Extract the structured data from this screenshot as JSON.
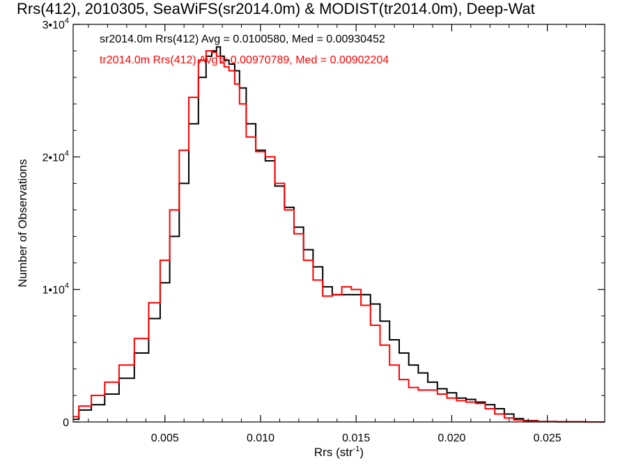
{
  "chart_data": {
    "type": "line",
    "title": "Rrs(412), 2010305, SeaWiFS(sr2014.0m) & MODIST(tr2014.0m), Deep-Wat",
    "xlabel": "Rrs (str",
    "xlabel_sup": "-1",
    "xlabel_end": ")",
    "ylabel": "Number of Observations",
    "xlim": [
      0.0002,
      0.028
    ],
    "ylim": [
      0,
      30000
    ],
    "x_ticks": [
      {
        "value": 0.005,
        "label": "0.005"
      },
      {
        "value": 0.01,
        "label": "0.010"
      },
      {
        "value": 0.015,
        "label": "0.015"
      },
      {
        "value": 0.02,
        "label": "0.020"
      },
      {
        "value": 0.025,
        "label": "0.025"
      }
    ],
    "y_ticks": [
      {
        "value": 0,
        "mantissa": "0",
        "exp": ""
      },
      {
        "value": 10000,
        "mantissa": "1•10",
        "exp": "4"
      },
      {
        "value": 20000,
        "mantissa": "2•10",
        "exp": "4"
      },
      {
        "value": 30000,
        "mantissa": "3•10",
        "exp": "4"
      }
    ],
    "grid": false,
    "annotations": [
      {
        "text": "sr2014.0m Rrs(412) Avg = 0.0100580, Med = 0.00930452",
        "color": "#000000"
      },
      {
        "text": "tr2014.0m Rrs(412) Avg = 0.00970789, Med = 0.00902204",
        "color": "#ff0000"
      }
    ],
    "series": [
      {
        "color": "#000000",
        "x": [
          0.0002,
          0.0008,
          0.0015,
          0.0022,
          0.003,
          0.0038,
          0.0045,
          0.005,
          0.0055,
          0.006,
          0.0065,
          0.007,
          0.0073,
          0.0076,
          0.0078,
          0.008,
          0.0082,
          0.0085,
          0.0088,
          0.009,
          0.0095,
          0.01,
          0.0105,
          0.011,
          0.0115,
          0.012,
          0.0125,
          0.013,
          0.0135,
          0.014,
          0.0145,
          0.015,
          0.0155,
          0.016,
          0.0165,
          0.017,
          0.0175,
          0.018,
          0.0185,
          0.019,
          0.0195,
          0.02,
          0.0205,
          0.021,
          0.0215,
          0.022,
          0.0225,
          0.023,
          0.0235,
          0.024,
          0.025,
          0.026,
          0.028
        ],
        "y": [
          200,
          900,
          1300,
          2100,
          3300,
          5200,
          7800,
          10500,
          14000,
          18000,
          22500,
          26000,
          27600,
          28000,
          28300,
          27600,
          27300,
          27000,
          26500,
          25200,
          22500,
          20500,
          19700,
          17800,
          16200,
          14700,
          13000,
          11700,
          10200,
          9600,
          9600,
          9600,
          9600,
          8900,
          7600,
          6200,
          5200,
          4300,
          3700,
          3000,
          2500,
          2200,
          1800,
          1700,
          1500,
          1300,
          1000,
          600,
          250,
          100,
          30,
          10,
          0
        ]
      },
      {
        "color": "#ff0000",
        "x": [
          0.0002,
          0.0008,
          0.0015,
          0.0022,
          0.003,
          0.0038,
          0.0045,
          0.005,
          0.0055,
          0.006,
          0.0065,
          0.007,
          0.0073,
          0.0076,
          0.0078,
          0.008,
          0.0082,
          0.0085,
          0.0088,
          0.009,
          0.0095,
          0.01,
          0.0105,
          0.011,
          0.0115,
          0.012,
          0.0125,
          0.013,
          0.0135,
          0.014,
          0.0145,
          0.015,
          0.0155,
          0.016,
          0.0165,
          0.017,
          0.0175,
          0.018,
          0.0185,
          0.019,
          0.0195,
          0.02,
          0.0205,
          0.021,
          0.0215,
          0.022,
          0.0225,
          0.023,
          0.0235,
          0.024,
          0.025,
          0.026,
          0.028
        ],
        "y": [
          400,
          1200,
          2000,
          3000,
          4300,
          6300,
          9000,
          12200,
          16000,
          20500,
          24500,
          27300,
          28000,
          27900,
          27600,
          27100,
          26800,
          26500,
          25500,
          24000,
          21500,
          20400,
          20000,
          18000,
          16000,
          14200,
          12200,
          10700,
          9500,
          9600,
          10200,
          10000,
          8800,
          7300,
          5800,
          4300,
          3200,
          2600,
          2400,
          2400,
          2100,
          1800,
          1600,
          1500,
          1400,
          1000,
          600,
          300,
          150,
          60,
          20,
          10,
          0
        ]
      }
    ]
  }
}
